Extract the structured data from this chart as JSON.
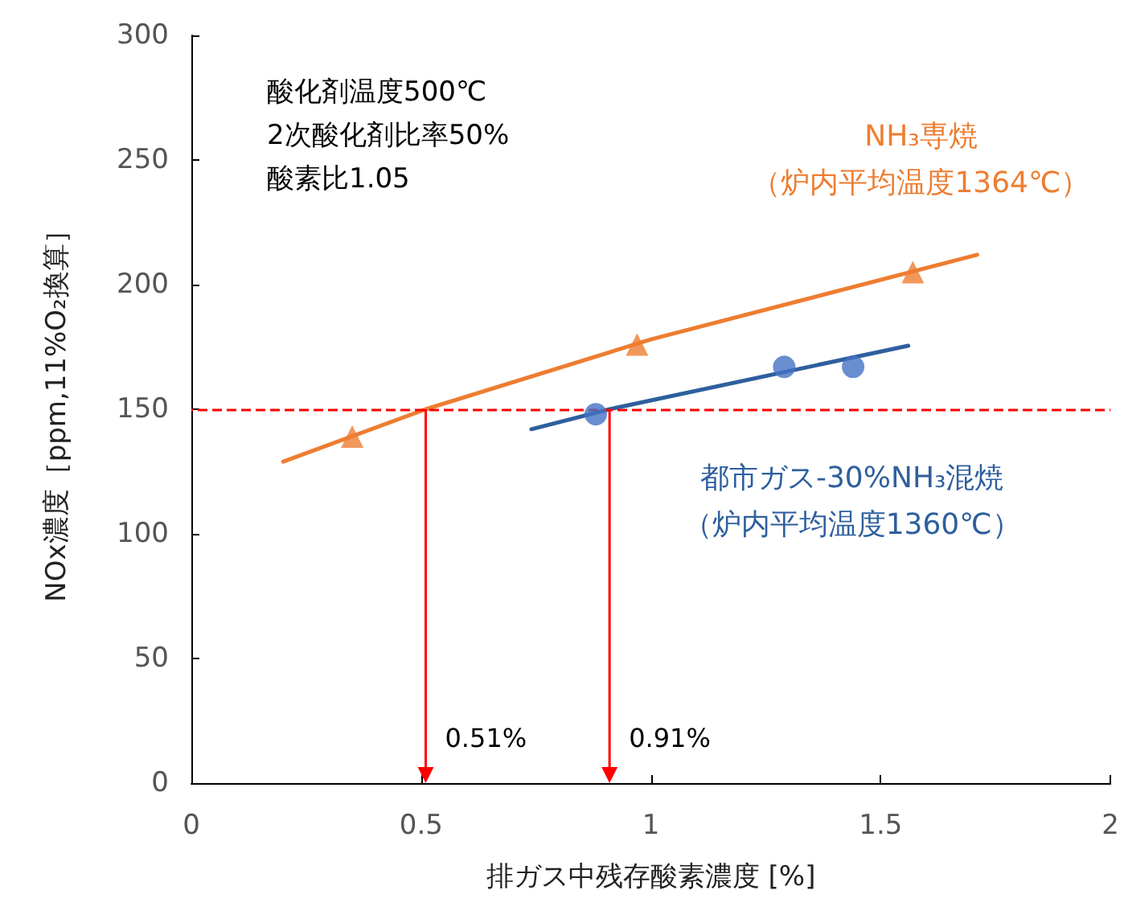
{
  "chart_data": {
    "type": "scatter",
    "xlabel": "排ガス中残存酸素濃度 [%]",
    "ylabel": "NOx濃度［ppm,11%O₂換算］",
    "xlim": [
      0,
      2
    ],
    "xticks": [
      0,
      0.5,
      1,
      1.5,
      2
    ],
    "ylim": [
      0,
      300
    ],
    "yticks": [
      0,
      50,
      100,
      150,
      200,
      250,
      300
    ],
    "grid": false,
    "legend": false,
    "series": [
      {
        "marker": "triangle",
        "color": "#ed7d31",
        "x": [
          0.35,
          0.97,
          1.57
        ],
        "values": [
          139,
          176,
          205
        ]
      },
      {
        "type": "line",
        "marker": "none",
        "name": "NH₃専焼（炉内平均温度1364℃）",
        "color": "#ed7d31",
        "x": [
          0.2,
          0.51,
          1.0,
          1.71
        ],
        "values": [
          129,
          150,
          178,
          212
        ]
      },
      {
        "marker": "circle",
        "color": "#4472c4",
        "x": [
          0.88,
          1.29,
          1.44
        ],
        "values": [
          148,
          167,
          167
        ]
      },
      {
        "type": "line",
        "marker": "none",
        "name": "都市ガス-30%NH₃混焼（炉内平均温度1360℃）",
        "color": "#2e5f9e",
        "x": [
          0.74,
          0.91,
          1.56
        ],
        "values": [
          142,
          150,
          175.5
        ]
      }
    ],
    "ref_lines": [
      {
        "axis": "y",
        "value": 150,
        "color": "#ff0000",
        "line_style": "dashed"
      },
      {
        "axis": "x",
        "value": 0.51,
        "label": "0.51%",
        "color": "#ff0000"
      },
      {
        "axis": "x",
        "value": 0.91,
        "label": "0.91%",
        "color": "#ff0000"
      }
    ],
    "annotations": [
      "酸化剤温度500℃\n2次酸化剤比率50%\n酸素比1.05"
    ]
  }
}
